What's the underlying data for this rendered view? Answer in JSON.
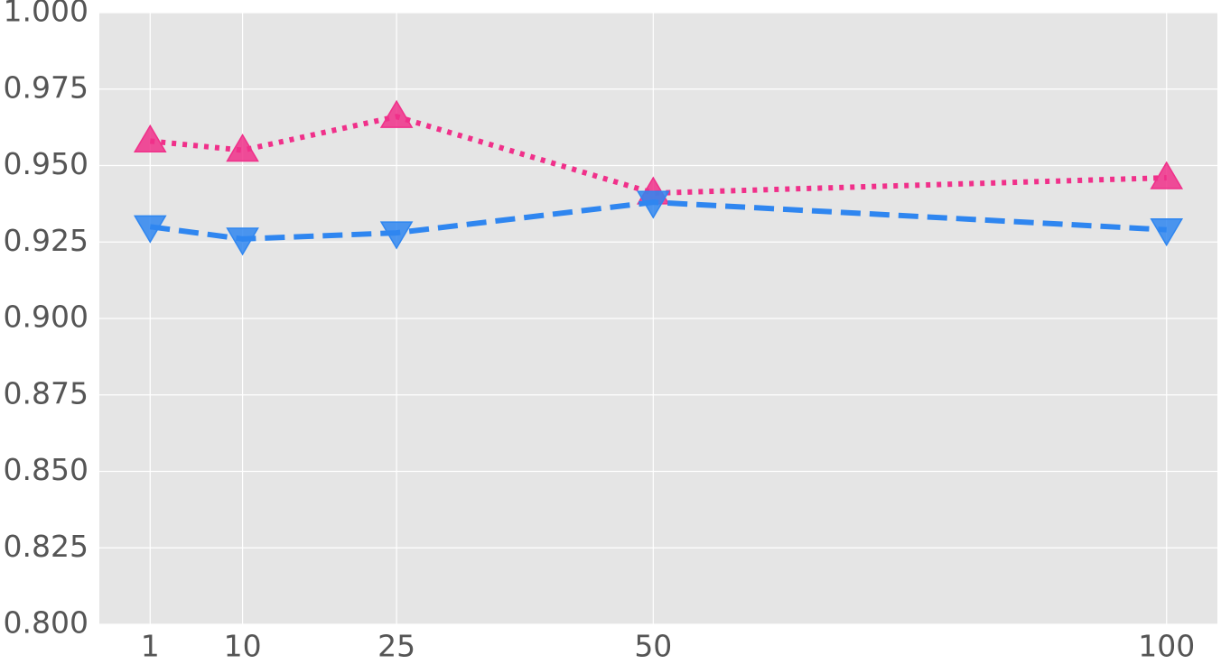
{
  "chart_data": {
    "type": "line",
    "x": [
      1,
      10,
      25,
      50,
      100
    ],
    "series": [
      {
        "color": "#f0308a",
        "linestyle": "dotted",
        "marker": "triangle-up",
        "values": [
          0.958,
          0.955,
          0.966,
          0.941,
          0.946
        ]
      },
      {
        "color": "#2f86f0",
        "linestyle": "dashed",
        "marker": "triangle-down",
        "values": [
          0.93,
          0.926,
          0.928,
          0.938,
          0.929
        ]
      }
    ],
    "xlim": [
      -3.95,
      104.95
    ],
    "xticks": [
      1,
      10,
      25,
      50,
      100
    ],
    "ylim": [
      0.8,
      1.0
    ],
    "yticks": [
      {
        "value": 0.8,
        "label": "0.800"
      },
      {
        "value": 0.825,
        "label": "0.825"
      },
      {
        "value": 0.85,
        "label": "0.850"
      },
      {
        "value": 0.875,
        "label": "0.875"
      },
      {
        "value": 0.9,
        "label": "0.900"
      },
      {
        "value": 0.925,
        "label": "0.925"
      },
      {
        "value": 0.95,
        "label": "0.950"
      },
      {
        "value": 0.975,
        "label": "0.975"
      },
      {
        "value": 1.0,
        "label": "1.000"
      }
    ],
    "grid": true
  }
}
